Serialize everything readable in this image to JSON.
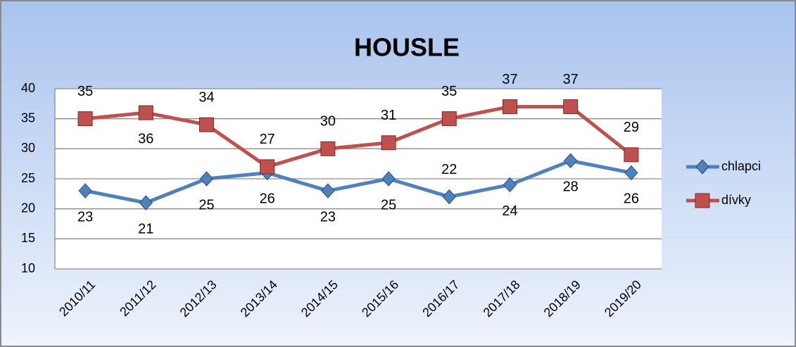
{
  "chart_data": {
    "type": "line",
    "title": "HOUSLE",
    "categories": [
      "2010/11",
      "2011/12",
      "2012/13",
      "2013/14",
      "2014/15",
      "2015/16",
      "2016/17",
      "2017/18",
      "2018/19",
      "2019/20"
    ],
    "series": [
      {
        "name": "chlapci",
        "color": "#4f81bd",
        "marker": "diamond",
        "values": [
          23,
          21,
          25,
          26,
          23,
          25,
          22,
          24,
          28,
          26
        ]
      },
      {
        "name": "dívky",
        "color": "#c0504d",
        "marker": "square",
        "values": [
          35,
          36,
          34,
          27,
          30,
          31,
          35,
          37,
          37,
          29
        ]
      }
    ],
    "ylim": [
      10,
      40
    ],
    "yticks": [
      10,
      15,
      20,
      25,
      30,
      35,
      40
    ],
    "grid": true,
    "legend": "right"
  }
}
